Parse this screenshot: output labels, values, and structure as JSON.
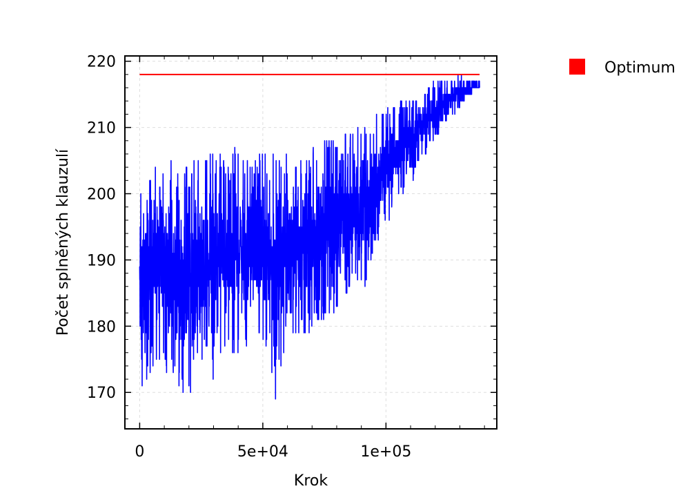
{
  "chart_data": {
    "type": "line",
    "xlabel": "Krok",
    "ylabel": "Počet splněných klauzulí",
    "xlim": [
      -6000,
      145000
    ],
    "ylim": [
      164.5,
      220.8
    ],
    "x_ticks": [
      0,
      50000,
      100000
    ],
    "x_tick_labels": [
      "0",
      "5e+04",
      "1e+05"
    ],
    "y_ticks": [
      170,
      180,
      190,
      200,
      210,
      220
    ],
    "y_tick_labels": [
      "170",
      "180",
      "190",
      "200",
      "210",
      "220"
    ],
    "grid": true,
    "legend_position": "top-right, outside plot",
    "series": [
      {
        "color": "#0000ff",
        "style": "noisy line",
        "x_range": [
          0,
          138000
        ],
        "envelope": [
          {
            "x": 0,
            "low": 167,
            "high": 202
          },
          {
            "x": 5000,
            "low": 173,
            "high": 206
          },
          {
            "x": 10000,
            "low": 174,
            "high": 206
          },
          {
            "x": 15000,
            "low": 169,
            "high": 206
          },
          {
            "x": 18000,
            "low": 167,
            "high": 205
          },
          {
            "x": 25000,
            "low": 175,
            "high": 205
          },
          {
            "x": 30000,
            "low": 172,
            "high": 207
          },
          {
            "x": 35000,
            "low": 173,
            "high": 206
          },
          {
            "x": 40000,
            "low": 176,
            "high": 207
          },
          {
            "x": 45000,
            "low": 178,
            "high": 206
          },
          {
            "x": 50000,
            "low": 178,
            "high": 207
          },
          {
            "x": 55000,
            "low": 169,
            "high": 207
          },
          {
            "x": 60000,
            "low": 178,
            "high": 207
          },
          {
            "x": 65000,
            "low": 177,
            "high": 207
          },
          {
            "x": 70000,
            "low": 179,
            "high": 207
          },
          {
            "x": 75000,
            "low": 181,
            "high": 208
          },
          {
            "x": 80000,
            "low": 182,
            "high": 209
          },
          {
            "x": 85000,
            "low": 185,
            "high": 210
          },
          {
            "x": 90000,
            "low": 183,
            "high": 211
          },
          {
            "x": 95000,
            "low": 191,
            "high": 212
          },
          {
            "x": 100000,
            "low": 195,
            "high": 213
          },
          {
            "x": 105000,
            "low": 198,
            "high": 214
          },
          {
            "x": 110000,
            "low": 201,
            "high": 215
          },
          {
            "x": 115000,
            "low": 205,
            "high": 216
          },
          {
            "x": 120000,
            "low": 208,
            "high": 217
          },
          {
            "x": 125000,
            "low": 211,
            "high": 217
          },
          {
            "x": 130000,
            "low": 213,
            "high": 218
          },
          {
            "x": 134000,
            "low": 215,
            "high": 217
          },
          {
            "x": 138000,
            "low": 216,
            "high": 217
          }
        ]
      },
      {
        "name": "Optimum",
        "color": "#ff0000",
        "style": "line",
        "x": [
          0,
          138000
        ],
        "y": [
          218,
          218
        ]
      }
    ]
  }
}
